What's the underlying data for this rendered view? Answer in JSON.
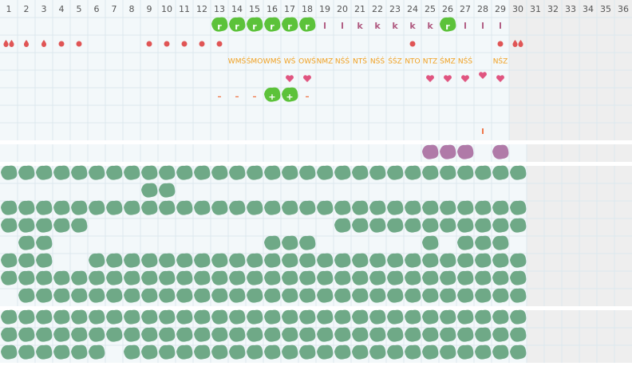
{
  "columns": [
    1,
    2,
    3,
    4,
    5,
    6,
    7,
    8,
    9,
    10,
    11,
    12,
    13,
    14,
    15,
    16,
    17,
    18,
    19,
    20,
    21,
    22,
    23,
    24,
    25,
    26,
    27,
    28,
    29,
    30,
    31,
    32,
    33,
    34,
    35,
    36
  ],
  "active_columns": 30,
  "top_rows": [
    {
      "style": "mixed",
      "items": [
        {
          "col": 13,
          "text": "r",
          "style": "badge"
        },
        {
          "col": 14,
          "text": "r",
          "style": "badge"
        },
        {
          "col": 15,
          "text": "r",
          "style": "badge"
        },
        {
          "col": 16,
          "text": "r",
          "style": "badge"
        },
        {
          "col": 17,
          "text": "r",
          "style": "badge"
        },
        {
          "col": 18,
          "text": "r",
          "style": "badge"
        },
        {
          "col": 19,
          "text": "l",
          "style": "letter"
        },
        {
          "col": 20,
          "text": "l",
          "style": "letter"
        },
        {
          "col": 21,
          "text": "k",
          "style": "letter"
        },
        {
          "col": 22,
          "text": "k",
          "style": "letter"
        },
        {
          "col": 23,
          "text": "k",
          "style": "letter"
        },
        {
          "col": 24,
          "text": "k",
          "style": "letter"
        },
        {
          "col": 25,
          "text": "k",
          "style": "letter"
        },
        {
          "col": 26,
          "text": "r",
          "style": "badge"
        },
        {
          "col": 27,
          "text": "l",
          "style": "letter"
        },
        {
          "col": 28,
          "text": "l",
          "style": "letter"
        },
        {
          "col": 29,
          "text": "l",
          "style": "letter"
        }
      ]
    },
    {
      "style": "mixed",
      "items": [
        {
          "col": 1,
          "style": "drop",
          "count": 2
        },
        {
          "col": 2,
          "style": "drop",
          "count": 1
        },
        {
          "col": 3,
          "style": "drop",
          "count": 1
        },
        {
          "col": 4,
          "style": "dot"
        },
        {
          "col": 5,
          "style": "dot"
        },
        {
          "col": 9,
          "style": "dot"
        },
        {
          "col": 10,
          "style": "dot"
        },
        {
          "col": 11,
          "style": "dot"
        },
        {
          "col": 12,
          "style": "dot"
        },
        {
          "col": 13,
          "style": "dot"
        },
        {
          "col": 24,
          "style": "dot"
        },
        {
          "col": 29,
          "style": "dot"
        },
        {
          "col": 30,
          "style": "drop",
          "count": 2
        }
      ]
    },
    {
      "style": "mixed",
      "items": [
        {
          "col": 14,
          "text": "WMŚ",
          "style": "code"
        },
        {
          "col": 15,
          "text": "ŚMO",
          "style": "code"
        },
        {
          "col": 16,
          "text": "WMŚ",
          "style": "code"
        },
        {
          "col": 17,
          "text": "WŚ",
          "style": "code"
        },
        {
          "col": 18,
          "text": "OWŚ",
          "style": "code"
        },
        {
          "col": 19,
          "text": "NMZ",
          "style": "code"
        },
        {
          "col": 20,
          "text": "NŚŚ",
          "style": "code"
        },
        {
          "col": 21,
          "text": "NTŚ",
          "style": "code"
        },
        {
          "col": 22,
          "text": "NŚŚ",
          "style": "code"
        },
        {
          "col": 23,
          "text": "ŚŚZ",
          "style": "code"
        },
        {
          "col": 24,
          "text": "NTO",
          "style": "code"
        },
        {
          "col": 25,
          "text": "NTZ",
          "style": "code"
        },
        {
          "col": 26,
          "text": "ŚMZ",
          "style": "code"
        },
        {
          "col": 27,
          "text": "NŚŚ",
          "style": "code"
        },
        {
          "col": 29,
          "text": "NŚZ",
          "style": "code"
        }
      ]
    },
    {
      "style": "mixed",
      "items": [
        {
          "col": 17,
          "style": "heart"
        },
        {
          "col": 18,
          "style": "heart"
        },
        {
          "col": 25,
          "style": "heart"
        },
        {
          "col": 26,
          "style": "heart"
        },
        {
          "col": 27,
          "style": "heart"
        },
        {
          "col": 28,
          "style": "heart"
        },
        {
          "col": 29,
          "style": "heart"
        }
      ]
    },
    {
      "style": "mixed",
      "items": [
        {
          "col": 13,
          "text": "–",
          "style": "dash"
        },
        {
          "col": 14,
          "text": "–",
          "style": "dash"
        },
        {
          "col": 15,
          "text": "–",
          "style": "dash"
        },
        {
          "col": 16,
          "text": "+",
          "style": "badge"
        },
        {
          "col": 17,
          "text": "+",
          "style": "badge"
        },
        {
          "col": 18,
          "text": "–",
          "style": "dash"
        }
      ]
    },
    {
      "style": "mixed",
      "items": []
    },
    {
      "style": "mixed",
      "items": [
        {
          "col": 28,
          "text": "I",
          "style": "dash"
        }
      ]
    }
  ],
  "purple_row": [
    25,
    26,
    27,
    29
  ],
  "blob_groups": [
    [
      [
        [
          1,
          30
        ]
      ],
      [
        [
          9,
          10
        ]
      ],
      [
        [
          1,
          30
        ]
      ],
      [
        [
          1,
          5
        ],
        [
          20,
          30
        ]
      ],
      [
        [
          2,
          3
        ],
        [
          16,
          18
        ],
        [
          25,
          25
        ],
        [
          27,
          29
        ]
      ],
      [
        [
          1,
          3
        ],
        [
          6,
          30
        ]
      ],
      [
        [
          1,
          30
        ]
      ],
      [
        [
          2,
          30
        ]
      ]
    ],
    [
      [
        [
          1,
          30
        ]
      ],
      [
        [
          1,
          30
        ]
      ],
      [
        [
          1,
          6
        ],
        [
          8,
          30
        ]
      ]
    ]
  ]
}
